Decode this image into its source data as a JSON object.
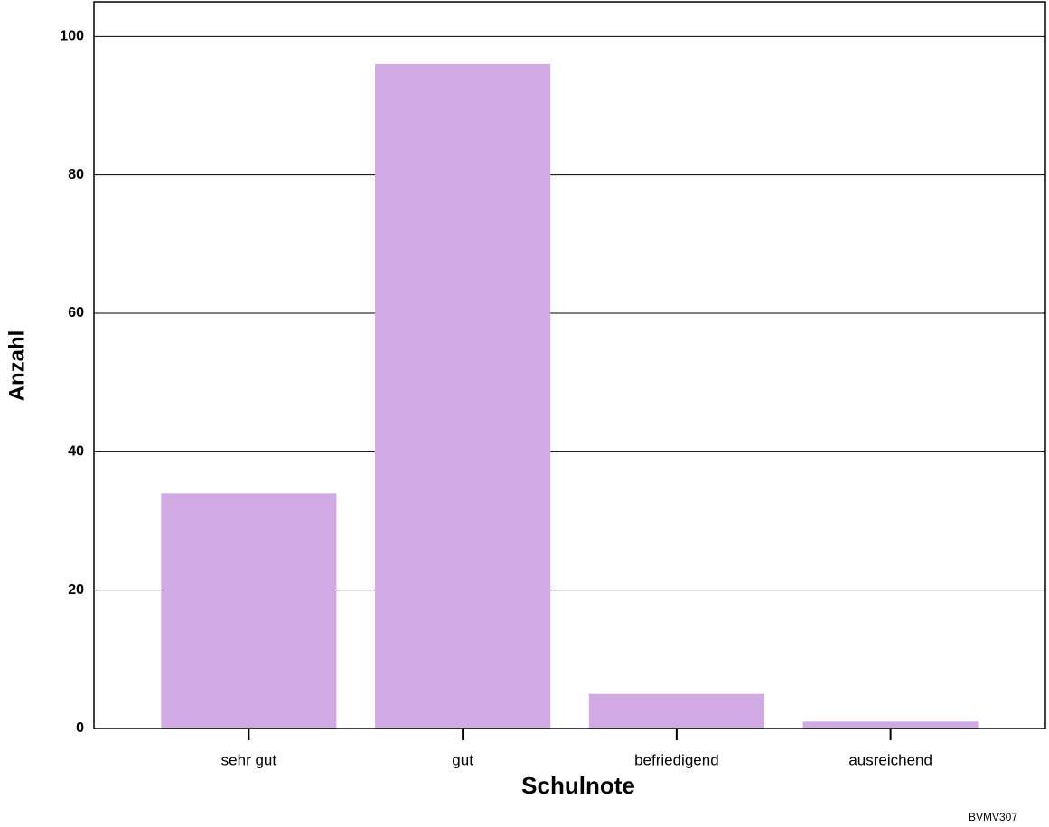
{
  "chart_data": {
    "type": "bar",
    "x_label": "Schulnote",
    "y_label": "Anzahl",
    "categories": [
      "sehr gut",
      "gut",
      "befriedigend",
      "ausreichend"
    ],
    "values": [
      34,
      96,
      5,
      1
    ],
    "color": "#d1aae4",
    "ylim": [
      0,
      105
    ],
    "yticks": [
      0,
      20,
      40,
      60,
      80,
      100
    ],
    "grid": true,
    "watermark": "BVMV307"
  }
}
